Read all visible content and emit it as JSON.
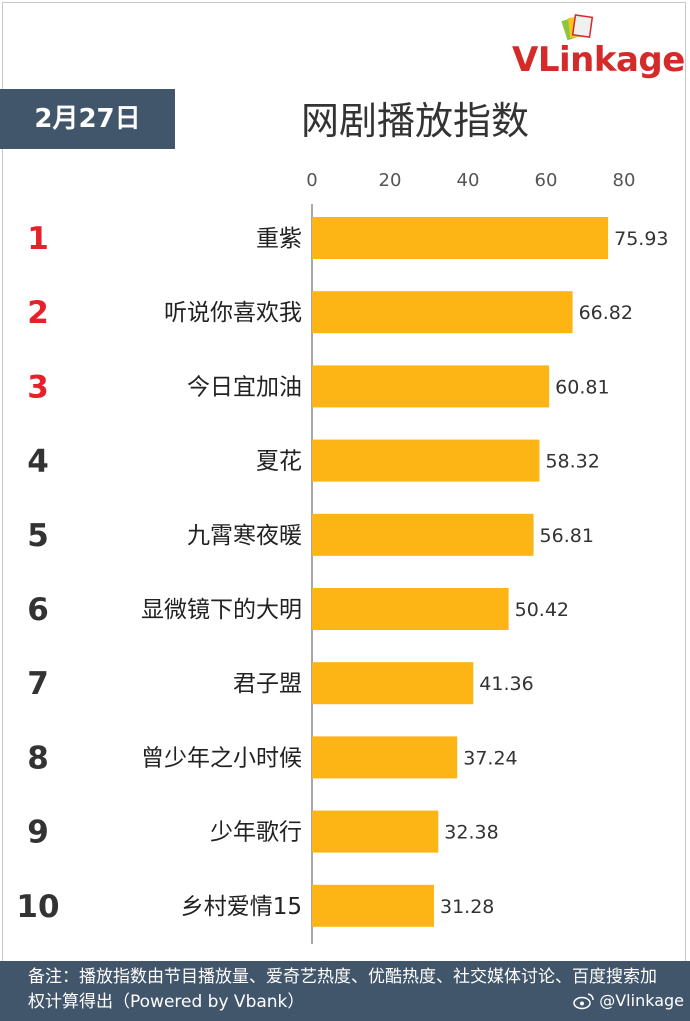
{
  "header": {
    "date": "2月27日",
    "title": "网剧播放指数",
    "logo": {
      "v": "V",
      "rest": "Linkage"
    }
  },
  "colors": {
    "bar": "#fdb415",
    "rank_top": "#e8202a",
    "rank": "#333333",
    "banner": "#42566b"
  },
  "chart_data": {
    "type": "bar",
    "orientation": "horizontal",
    "title": "网剧播放指数",
    "xlim": [
      0,
      80
    ],
    "x_ticks": [
      0,
      20,
      40,
      60,
      80
    ],
    "grid": false,
    "ranks": [
      "1",
      "2",
      "3",
      "4",
      "5",
      "6",
      "7",
      "8",
      "9",
      "10"
    ],
    "categories": [
      "重紫",
      "听说你喜欢我",
      "今日宜加油",
      "夏花",
      "九霄寒夜暖",
      "显微镜下的大明",
      "君子盟",
      "曾少年之小时候",
      "少年歌行",
      "乡村爱情15"
    ],
    "values": [
      75.93,
      66.82,
      60.81,
      58.32,
      56.81,
      50.42,
      41.36,
      37.24,
      32.38,
      31.28
    ],
    "value_labels": [
      "75.93",
      "66.82",
      "60.81",
      "58.32",
      "56.81",
      "50.42",
      "41.36",
      "37.24",
      "32.38",
      "31.28"
    ]
  },
  "footer": {
    "note": "备注：播放指数由节目播放量、爱奇艺热度、优酷热度、社交媒体讨论、百度搜索加权计算得出（Powered by Vbank）",
    "watermark": "@Vlinkage"
  }
}
